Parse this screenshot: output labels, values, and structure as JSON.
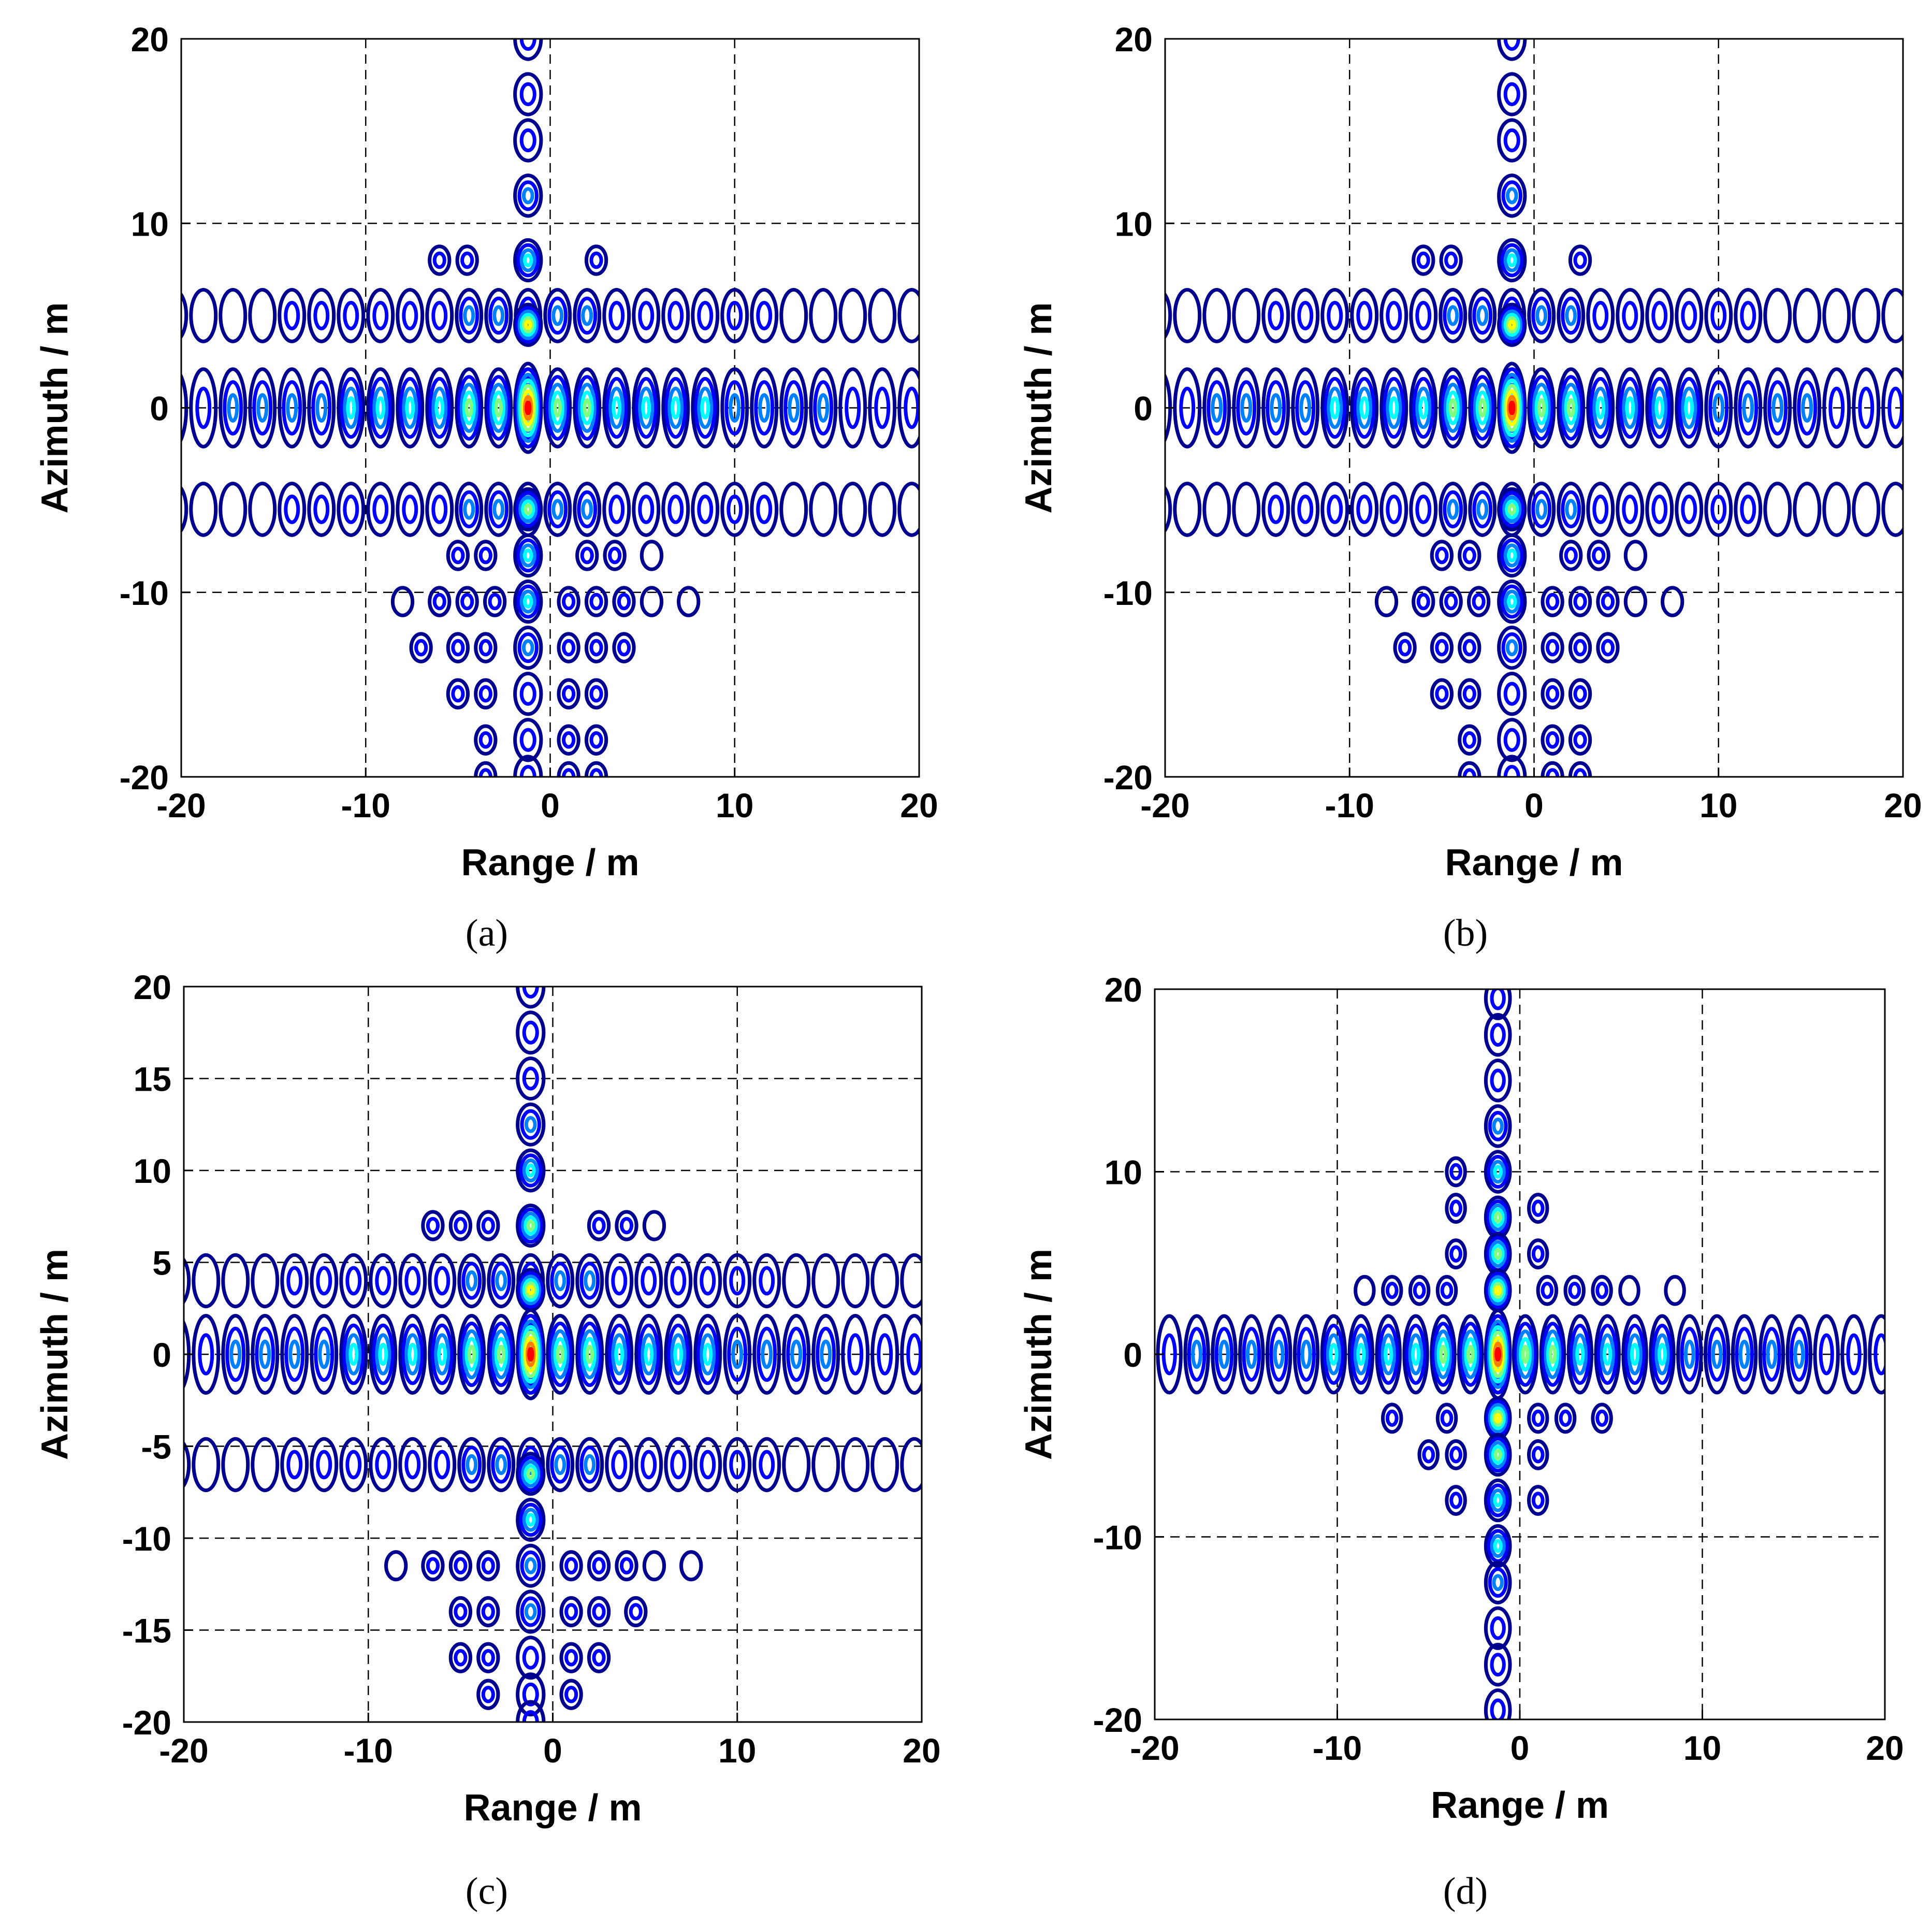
{
  "figure": {
    "colors": {
      "frame": "#000000",
      "grid": "#000000",
      "levels": [
        "#00008f",
        "#0000ff",
        "#0080ff",
        "#00ffff",
        "#80ff80",
        "#ffff00",
        "#ff8000",
        "#ff0000"
      ]
    }
  },
  "chart_data": [
    {
      "type": "contour",
      "panel": "a",
      "caption": "(a)",
      "xlabel": "Range / m",
      "ylabel": "Azimuth / m",
      "xlim": [
        -20,
        20
      ],
      "ylim": [
        -20,
        20
      ],
      "xticks": [
        -20,
        -10,
        0,
        10,
        20
      ],
      "yticks": [
        -20,
        -10,
        0,
        10,
        20
      ],
      "xtick_labels": [
        "-20",
        "-10",
        "0",
        "10",
        "20"
      ],
      "ytick_labels": [
        "-20",
        "-10",
        "0",
        "10",
        "20"
      ],
      "grid": true,
      "peak": {
        "x": -1.2,
        "y": 0
      },
      "range_lobe_spacing": 1.6,
      "range_extent": [
        -20,
        20
      ],
      "azimuth_lobe_positions": [
        20,
        17,
        14.5,
        11.5,
        8,
        4.5,
        0,
        -5.5,
        -8,
        -10.5,
        -13,
        -15.5,
        -18,
        -20
      ],
      "horizontal_bands": [
        5,
        0,
        -5.5
      ],
      "side_rows": [
        {
          "y": 8,
          "x": [
            -6,
            -4.5,
            2.5
          ]
        },
        {
          "y": -8,
          "x": [
            -5,
            -3.5,
            2,
            3.5,
            5.5
          ]
        },
        {
          "y": -10.5,
          "x": [
            -8,
            -6,
            -4.5,
            -3,
            1,
            2.5,
            4,
            5.5,
            7.5
          ]
        },
        {
          "y": -13,
          "x": [
            -7,
            -5,
            -3.5,
            1,
            2.5,
            4
          ]
        },
        {
          "y": -15.5,
          "x": [
            -5,
            -3.5,
            1,
            2.5
          ]
        },
        {
          "y": -18,
          "x": [
            -3.5,
            1,
            2.5
          ]
        },
        {
          "y": -20,
          "x": [
            -3.5,
            1,
            2.5
          ]
        }
      ]
    },
    {
      "type": "contour",
      "panel": "b",
      "caption": "(b)",
      "xlabel": "Range / m",
      "ylabel": "Azimuth / m",
      "xlim": [
        -20,
        20
      ],
      "ylim": [
        -20,
        20
      ],
      "xticks": [
        -20,
        -10,
        0,
        10,
        20
      ],
      "yticks": [
        -20,
        -10,
        0,
        10,
        20
      ],
      "xtick_labels": [
        "-20",
        "-10",
        "0",
        "10",
        "20"
      ],
      "ytick_labels": [
        "-20",
        "-10",
        "0",
        "10",
        "20"
      ],
      "grid": true,
      "peak": {
        "x": -1.2,
        "y": 0
      },
      "range_lobe_spacing": 1.6,
      "range_extent": [
        -20,
        20
      ],
      "azimuth_lobe_positions": [
        20,
        17,
        14.5,
        11.5,
        8,
        4.5,
        0,
        -5.5,
        -8,
        -10.5,
        -13,
        -15.5,
        -18,
        -20
      ],
      "horizontal_bands": [
        5,
        0,
        -5.5
      ],
      "side_rows": [
        {
          "y": 8,
          "x": [
            -6,
            -4.5,
            2.5
          ]
        },
        {
          "y": -8,
          "x": [
            -5,
            -3.5,
            2,
            3.5,
            5.5
          ]
        },
        {
          "y": -10.5,
          "x": [
            -8,
            -6,
            -4.5,
            -3,
            1,
            2.5,
            4,
            5.5,
            7.5
          ]
        },
        {
          "y": -13,
          "x": [
            -7,
            -5,
            -3.5,
            1,
            2.5,
            4
          ]
        },
        {
          "y": -15.5,
          "x": [
            -5,
            -3.5,
            1,
            2.5
          ]
        },
        {
          "y": -18,
          "x": [
            -3.5,
            1,
            2.5
          ]
        },
        {
          "y": -20,
          "x": [
            -3.5,
            1,
            2.5
          ]
        }
      ]
    },
    {
      "type": "contour",
      "panel": "c",
      "caption": "(c)",
      "xlabel": "Range / m",
      "ylabel": "Azimuth / m",
      "xlim": [
        -20,
        20
      ],
      "ylim": [
        -20,
        20
      ],
      "xticks": [
        -20,
        -10,
        0,
        10,
        20
      ],
      "yticks": [
        -20,
        -15,
        -10,
        -5,
        0,
        5,
        10,
        15,
        20
      ],
      "xtick_labels": [
        "-20",
        "-10",
        "0",
        "10",
        "20"
      ],
      "ytick_labels": [
        "-20",
        "-15",
        "-10",
        "-5",
        "0",
        "5",
        "10",
        "15",
        "20"
      ],
      "grid": true,
      "peak": {
        "x": -1.2,
        "y": 0
      },
      "range_lobe_spacing": 1.6,
      "range_extent": [
        -20,
        20
      ],
      "azimuth_lobe_positions": [
        20,
        17.5,
        15,
        12.5,
        10,
        7,
        3.5,
        0,
        -6.5,
        -9,
        -11.5,
        -14,
        -16.5,
        -18.5,
        -20
      ],
      "horizontal_bands": [
        4,
        0,
        -6
      ],
      "side_rows": [
        {
          "y": 7,
          "x": [
            -6.5,
            -5,
            -3.5,
            2.5,
            4,
            5.5
          ]
        },
        {
          "y": -11.5,
          "x": [
            -8.5,
            -6.5,
            -5,
            -3.5,
            1,
            2.5,
            4,
            5.5,
            7.5
          ]
        },
        {
          "y": -14,
          "x": [
            -5,
            -3.5,
            1,
            2.5,
            4.5
          ]
        },
        {
          "y": -16.5,
          "x": [
            -5,
            -3.5,
            1,
            2.5
          ]
        },
        {
          "y": -18.5,
          "x": [
            -3.5,
            1
          ]
        }
      ]
    },
    {
      "type": "contour",
      "panel": "d",
      "caption": "(d)",
      "xlabel": "Range / m",
      "ylabel": "Azimuth / m",
      "xlim": [
        -20,
        20
      ],
      "ylim": [
        -20,
        20
      ],
      "xticks": [
        -20,
        -10,
        0,
        10,
        20
      ],
      "yticks": [
        -20,
        -10,
        0,
        10,
        20
      ],
      "xtick_labels": [
        "-20",
        "-10",
        "0",
        "10",
        "20"
      ],
      "ytick_labels": [
        "-20",
        "-10",
        "0",
        "10",
        "20"
      ],
      "grid": true,
      "peak": {
        "x": -1.2,
        "y": 0
      },
      "range_lobe_spacing": 1.5,
      "range_extent": [
        -19,
        20
      ],
      "azimuth_lobe_positions": [
        19.5,
        17.5,
        15,
        12.5,
        10,
        7.5,
        5.5,
        3.5,
        0,
        -3.5,
        -5.5,
        -8,
        -10.5,
        -12.5,
        -15,
        -17,
        -19.5
      ],
      "horizontal_bands": [
        0
      ],
      "side_rows": [
        {
          "y": 3.5,
          "x": [
            -8.5,
            -7,
            -5.5,
            -4,
            1.5,
            3,
            4.5,
            6,
            8.5
          ]
        },
        {
          "y": 5.5,
          "x": [
            -3.5,
            1
          ]
        },
        {
          "y": 8,
          "x": [
            -3.5,
            1
          ]
        },
        {
          "y": 10,
          "x": [
            -3.5
          ]
        },
        {
          "y": -3.5,
          "x": [
            -7,
            -4,
            1,
            2.5,
            4.5
          ]
        },
        {
          "y": -5.5,
          "x": [
            -5,
            -3.5,
            1
          ]
        },
        {
          "y": -8,
          "x": [
            -3.5,
            1
          ]
        }
      ]
    }
  ]
}
